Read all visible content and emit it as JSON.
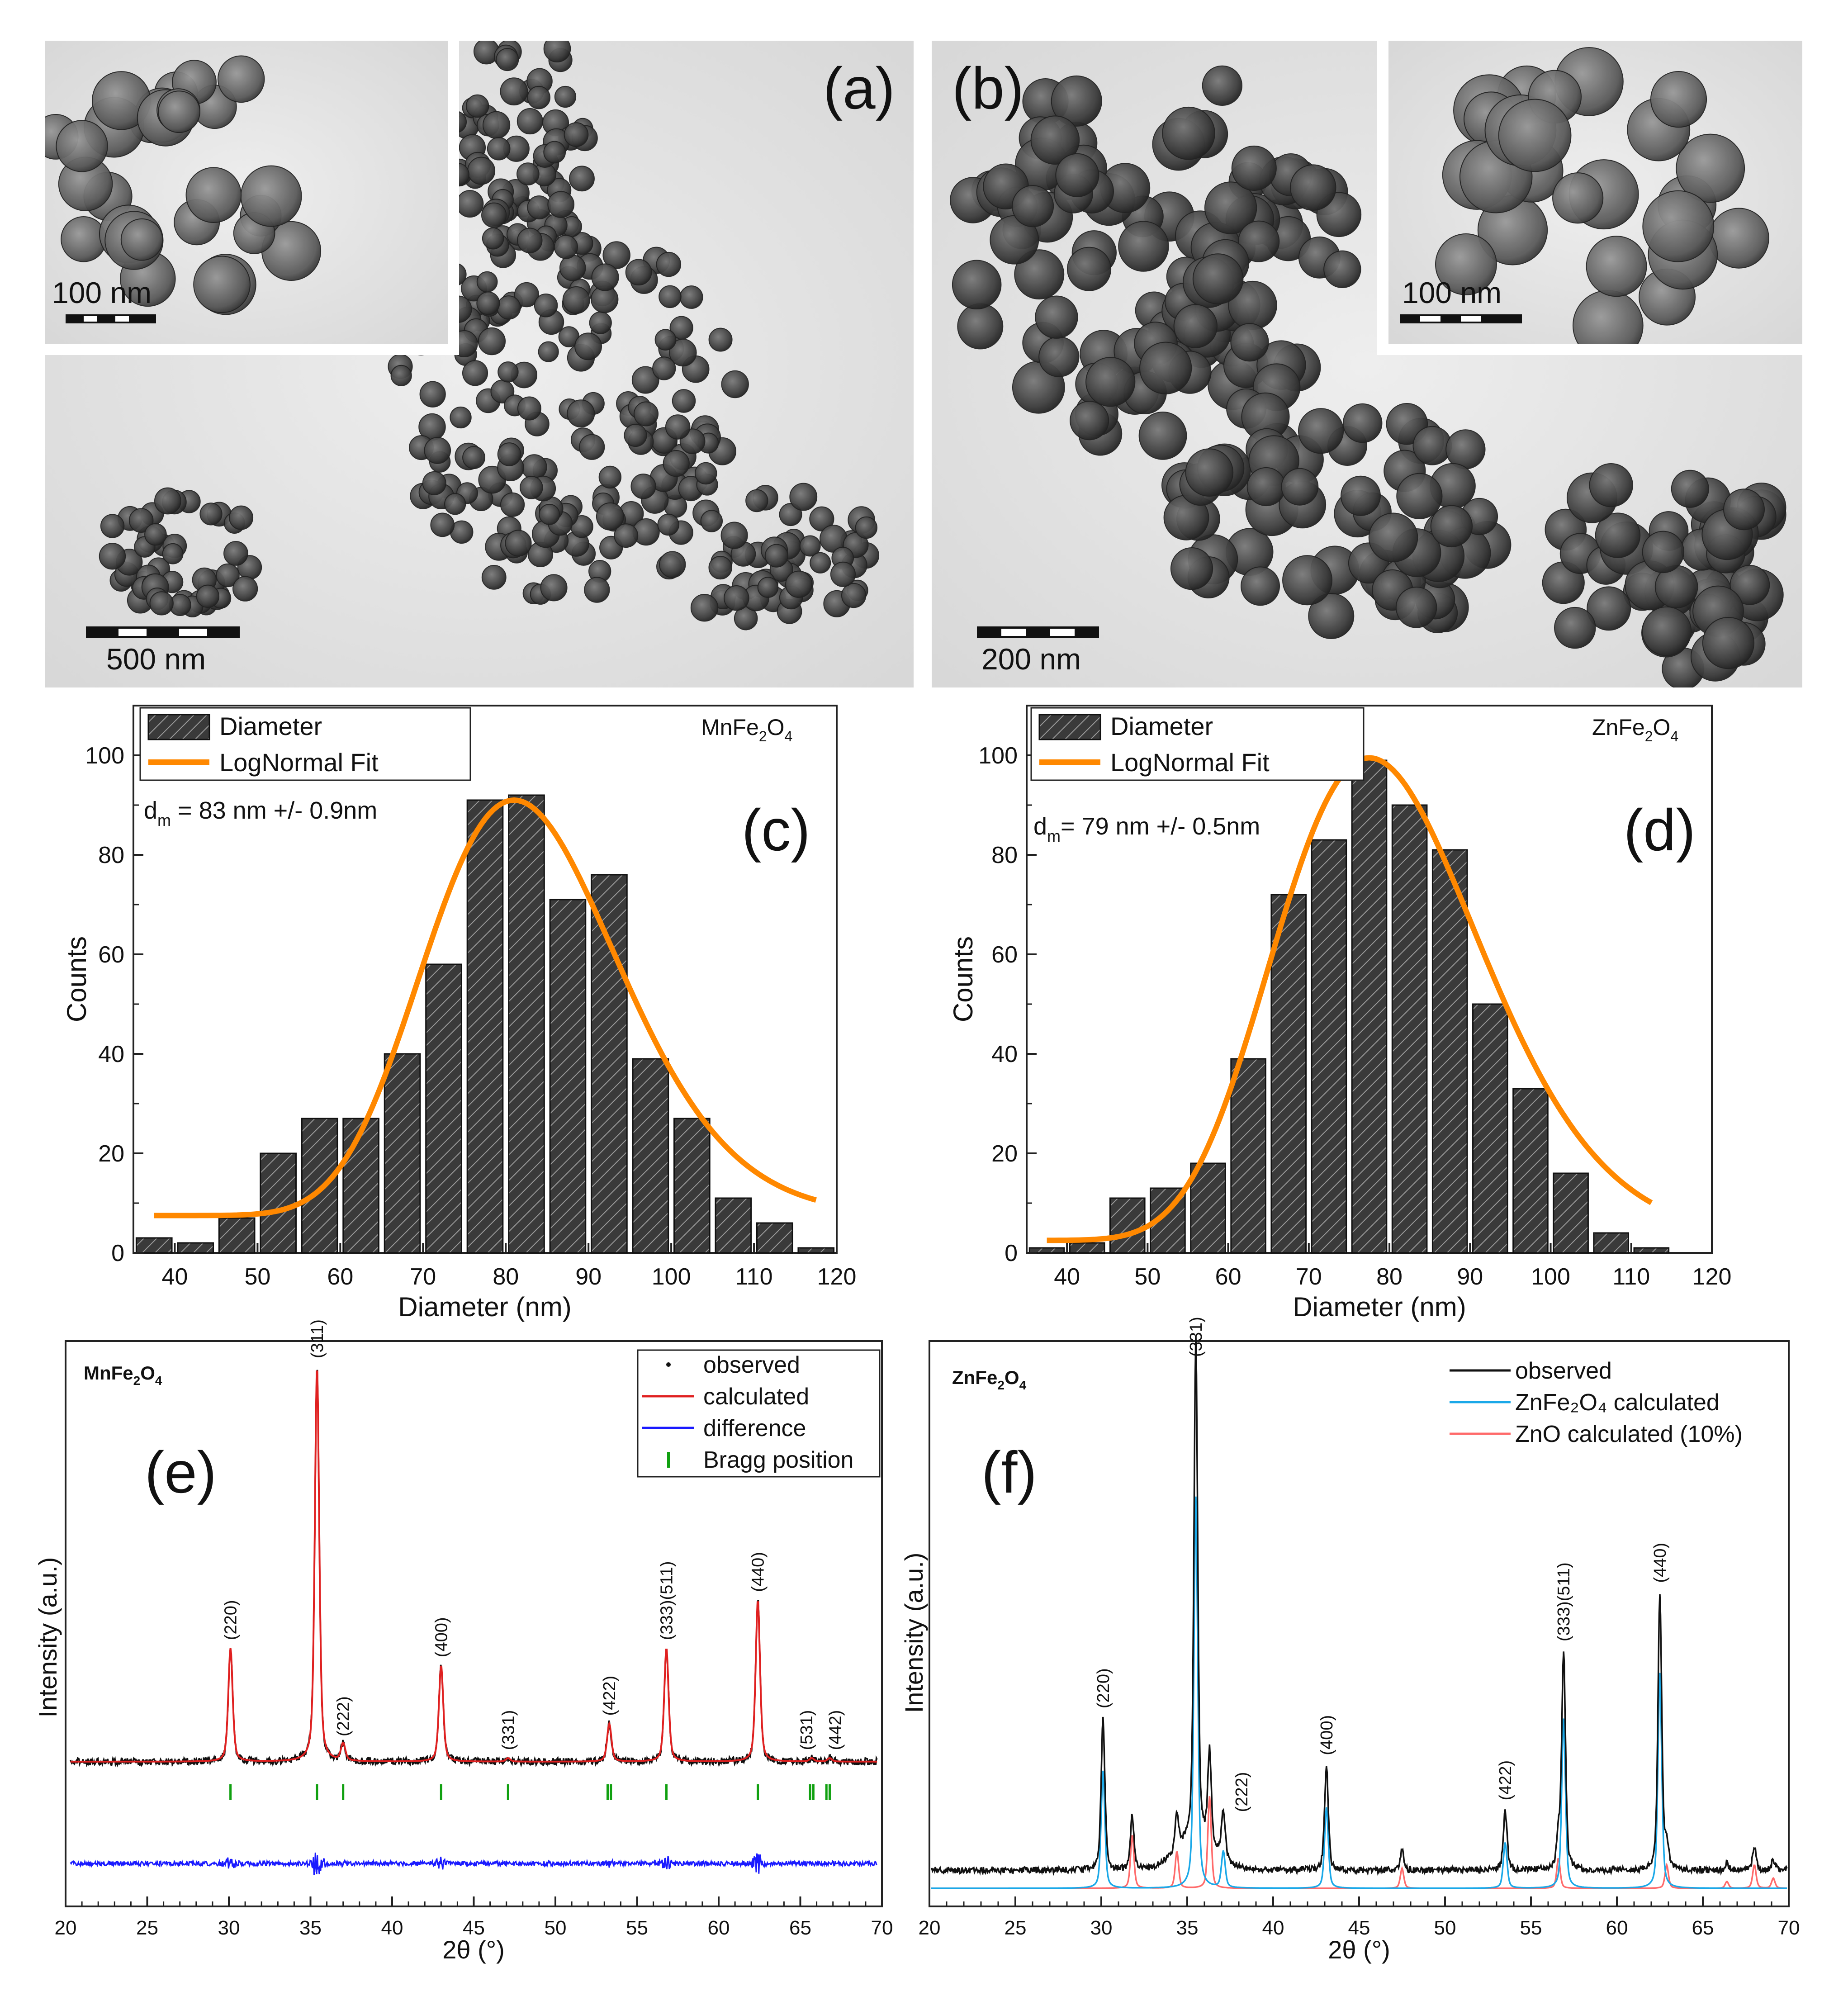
{
  "panels": {
    "a": {
      "letter": "(a)",
      "main_scale": "500 nm",
      "inset_scale": "100 nm"
    },
    "b": {
      "letter": "(b)",
      "main_scale": "200 nm",
      "inset_scale": "100 nm"
    }
  },
  "chart_data": [
    {
      "id": "c",
      "type": "bar",
      "panel_label": "(c)",
      "compound": {
        "pre": "MnFe",
        "sub1": "2",
        "mid": "O",
        "sub2": "4"
      },
      "annotation": {
        "d": "d",
        "sub": "m",
        "text": " = 83 nm +/- 0.9nm"
      },
      "legend": [
        "Diameter",
        "LogNormal Fit"
      ],
      "xlabel": "Diameter (nm)",
      "ylabel": "Counts",
      "xlim": [
        35,
        120
      ],
      "ylim": [
        0,
        110
      ],
      "xticks": [
        40,
        50,
        60,
        70,
        80,
        90,
        100,
        110,
        120
      ],
      "yticks": [
        0,
        20,
        40,
        60,
        80,
        100
      ],
      "bin_width": 5,
      "bins": [
        [
          37.5,
          3
        ],
        [
          42.5,
          2
        ],
        [
          47.5,
          7
        ],
        [
          52.5,
          20
        ],
        [
          57.5,
          27
        ],
        [
          62.5,
          27
        ],
        [
          67.5,
          40
        ],
        [
          72.5,
          58
        ],
        [
          77.5,
          91
        ],
        [
          82.5,
          92
        ],
        [
          87.5,
          71
        ],
        [
          92.5,
          76
        ],
        [
          97.5,
          39
        ],
        [
          102.5,
          27
        ],
        [
          107.5,
          11
        ],
        [
          112.5,
          6
        ],
        [
          117.5,
          1
        ]
      ],
      "fit": {
        "y0": 7.5,
        "A": 83.5,
        "xc": 81,
        "w": 0.145,
        "x_range": [
          37.5,
          117.5
        ]
      }
    },
    {
      "id": "d",
      "type": "bar",
      "panel_label": "(d)",
      "compound": {
        "pre": "ZnFe",
        "sub1": "2",
        "mid": "O",
        "sub2": "4"
      },
      "annotation": {
        "d": "d",
        "sub": "m",
        "text": "= 79 nm +/- 0.5nm"
      },
      "legend": [
        "Diameter",
        "LogNormal Fit"
      ],
      "xlabel": "Diameter (nm)",
      "ylabel": "Counts",
      "xlim": [
        35,
        120
      ],
      "ylim": [
        0,
        110
      ],
      "xticks": [
        40,
        50,
        60,
        70,
        80,
        90,
        100,
        110,
        120
      ],
      "yticks": [
        0,
        20,
        40,
        60,
        80,
        100
      ],
      "bin_width": 5,
      "bins": [
        [
          37.5,
          1
        ],
        [
          42.5,
          2
        ],
        [
          47.5,
          11
        ],
        [
          52.5,
          13
        ],
        [
          57.5,
          18
        ],
        [
          62.5,
          39
        ],
        [
          67.5,
          72
        ],
        [
          72.5,
          83
        ],
        [
          77.5,
          99
        ],
        [
          82.5,
          90
        ],
        [
          87.5,
          81
        ],
        [
          92.5,
          50
        ],
        [
          97.5,
          33
        ],
        [
          102.5,
          16
        ],
        [
          107.5,
          4
        ],
        [
          112.5,
          1
        ]
      ],
      "fit": {
        "y0": 2.5,
        "A": 97,
        "xc": 77.5,
        "w": 0.165,
        "x_range": [
          37.5,
          112.5
        ]
      }
    },
    {
      "id": "e",
      "type": "line",
      "panel_label": "(e)",
      "compound": {
        "pre": "MnFe",
        "sub1": "2",
        "mid": "O",
        "sub2": "4"
      },
      "xlabel": "2θ (°)",
      "ylabel": "Intensity (a.u.)",
      "xlim": [
        20,
        70
      ],
      "xticks": [
        20,
        25,
        30,
        35,
        40,
        45,
        50,
        55,
        60,
        65,
        70
      ],
      "legend": [
        "observed",
        "calculated",
        "difference",
        "Bragg position"
      ],
      "baseline": 0.1,
      "peaks": [
        {
          "pos": 30.1,
          "height": 0.66,
          "label": "(220)"
        },
        {
          "pos": 35.4,
          "height": 2.3,
          "label": "(311)"
        },
        {
          "pos": 37.0,
          "height": 0.1,
          "label": "(222)"
        },
        {
          "pos": 43.0,
          "height": 0.56,
          "label": "(400)"
        },
        {
          "pos": 47.1,
          "height": 0.02,
          "label": "(331)"
        },
        {
          "pos": 53.3,
          "height": 0.22,
          "label": "(422)"
        },
        {
          "pos": 56.8,
          "height": 0.66,
          "label": "(333)(511)"
        },
        {
          "pos": 62.4,
          "height": 0.94,
          "label": "(440)"
        },
        {
          "pos": 65.7,
          "height": 0.02,
          "label": "(531)"
        },
        {
          "pos": 66.8,
          "height": 0.02,
          "label": "(442)"
        }
      ],
      "bragg_positions": [
        30.1,
        35.4,
        37.0,
        43.0,
        47.1,
        53.2,
        53.4,
        56.8,
        62.4,
        65.6,
        65.8,
        66.6,
        66.8
      ]
    },
    {
      "id": "f",
      "type": "line",
      "panel_label": "(f)",
      "compound": {
        "pre": "ZnFe",
        "sub1": "2",
        "mid": "O",
        "sub2": "4"
      },
      "xlabel": "2θ (°)",
      "ylabel": "Intensity (a.u.)",
      "xlim": [
        20,
        70
      ],
      "xticks": [
        20,
        25,
        30,
        35,
        40,
        45,
        50,
        55,
        60,
        65,
        70
      ],
      "legend": [
        "observed",
        "ZnFe₂O₄ calculated",
        "ZnO calculated (10%)"
      ],
      "baseline": 0.08,
      "zn_peaks": [
        {
          "pos": 30.1,
          "height": 0.9,
          "label": "(220)"
        },
        {
          "pos": 35.5,
          "height": 3.0,
          "label": "(331)"
        },
        {
          "pos": 37.1,
          "height": 0.28,
          "label": "(222)"
        },
        {
          "pos": 43.1,
          "height": 0.62,
          "label": "(400)"
        },
        {
          "pos": 53.5,
          "height": 0.35,
          "label": "(422)"
        },
        {
          "pos": 56.9,
          "height": 1.3,
          "label": "(333)(511)"
        },
        {
          "pos": 62.5,
          "height": 1.65,
          "label": "(440)"
        }
      ],
      "zno_peaks": [
        [
          31.8,
          0.32
        ],
        [
          34.4,
          0.22
        ],
        [
          36.3,
          0.55
        ],
        [
          47.5,
          0.12
        ],
        [
          56.6,
          0.18
        ],
        [
          62.9,
          0.14
        ],
        [
          66.4,
          0.04
        ],
        [
          68.0,
          0.14
        ],
        [
          69.1,
          0.06
        ]
      ]
    }
  ]
}
